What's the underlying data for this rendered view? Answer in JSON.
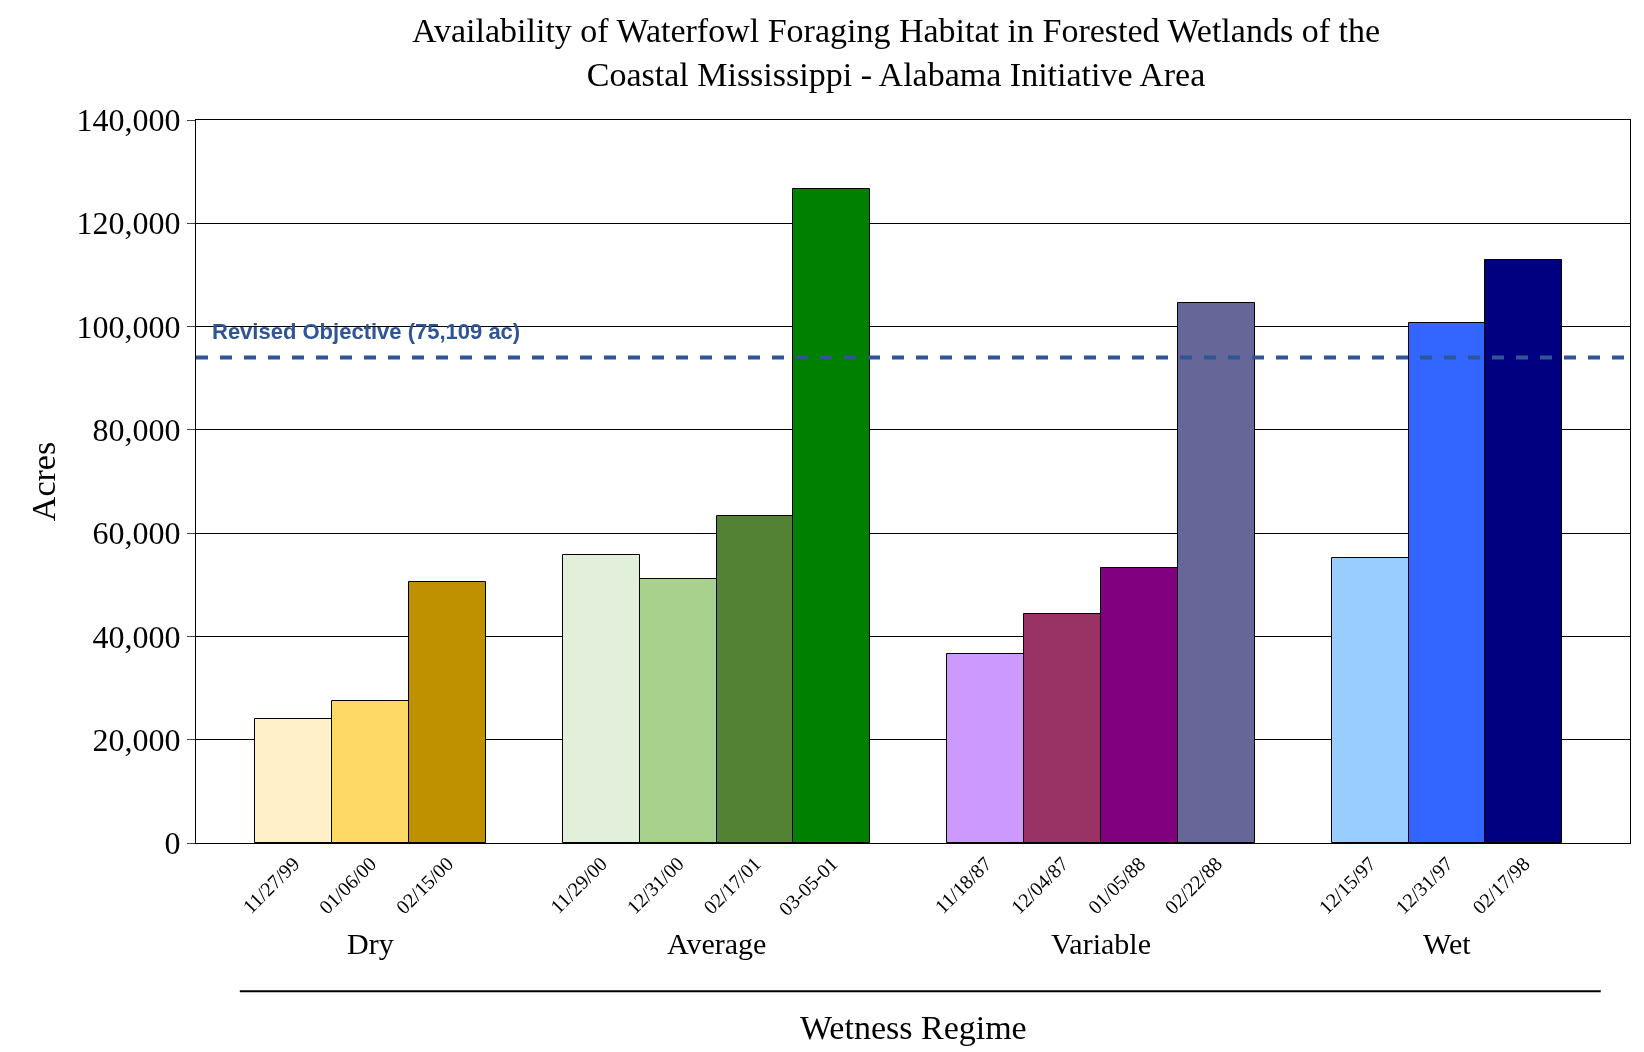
{
  "chart_data": {
    "type": "bar",
    "title": "Availability of Waterfowl Foraging Habitat in Forested Wetlands of the\nCoastal Mississippi - Alabama Initiative Area",
    "xlabel": "Wetness Regime",
    "ylabel": "Acres",
    "categories": [
      "11/27/99",
      "01/06/00",
      "02/15/00",
      null,
      "11/29/00",
      "12/31/00",
      "02/17/01",
      "03-05-01",
      null,
      "11/18/87",
      "12/04/87",
      "01/05/88",
      "02/22/88",
      null,
      "12/15/97",
      "12/31/97",
      "02/17/98"
    ],
    "series": [
      {
        "name": "Dry",
        "colors": [
          "#fff0c8",
          "#ffd966",
          "#bf9000",
          null,
          null,
          null,
          null,
          null,
          null,
          null,
          null,
          null,
          null,
          null,
          null,
          null,
          null
        ],
        "values": [
          24000,
          27500,
          50600,
          null,
          null,
          null,
          null,
          null,
          null,
          null,
          null,
          null,
          null,
          null,
          null,
          null,
          null
        ]
      },
      {
        "name": "Average",
        "colors": [
          null,
          null,
          null,
          null,
          "#e2efda",
          "#a9d18e",
          "#548235",
          "#008000",
          null,
          null,
          null,
          null,
          null,
          null,
          null,
          null,
          null
        ],
        "values": [
          null,
          null,
          null,
          null,
          55700,
          51200,
          63400,
          126600,
          null,
          null,
          null,
          null,
          null,
          null,
          null,
          null,
          null
        ]
      },
      {
        "name": "Variable",
        "colors": [
          null,
          null,
          null,
          null,
          null,
          null,
          null,
          null,
          null,
          "#cc99ff",
          "#993366",
          "#800080",
          "#666699",
          null,
          null,
          null,
          null
        ],
        "values": [
          null,
          null,
          null,
          null,
          null,
          null,
          null,
          null,
          null,
          36600,
          44300,
          53200,
          104500,
          null,
          null,
          null,
          null
        ]
      },
      {
        "name": "Wet",
        "colors": [
          null,
          null,
          null,
          null,
          null,
          null,
          null,
          null,
          null,
          null,
          null,
          null,
          null,
          null,
          "#99ccff",
          "#3366ff",
          "#000080"
        ],
        "values": [
          null,
          null,
          null,
          null,
          null,
          null,
          null,
          null,
          null,
          null,
          null,
          null,
          null,
          null,
          55100,
          100600,
          112800
        ]
      }
    ],
    "ylim": [
      0,
      140000
    ],
    "yticks": [
      {
        "value": 0,
        "label": "0"
      },
      {
        "value": 20000,
        "label": "20,000"
      },
      {
        "value": 40000,
        "label": "40,000"
      },
      {
        "value": 60000,
        "label": "60,000"
      },
      {
        "value": 80000,
        "label": "80,000"
      },
      {
        "value": 100000,
        "label": "100,000"
      },
      {
        "value": 120000,
        "label": "120,000"
      },
      {
        "value": 140000,
        "label": "140,000"
      }
    ],
    "grid": "y",
    "legend": false,
    "ref_lines": [
      {
        "axis": "y",
        "value": 94000,
        "label": "Revised Objective (75,109 ac)",
        "color": "#2f5597",
        "line_style": "dashed"
      }
    ]
  }
}
